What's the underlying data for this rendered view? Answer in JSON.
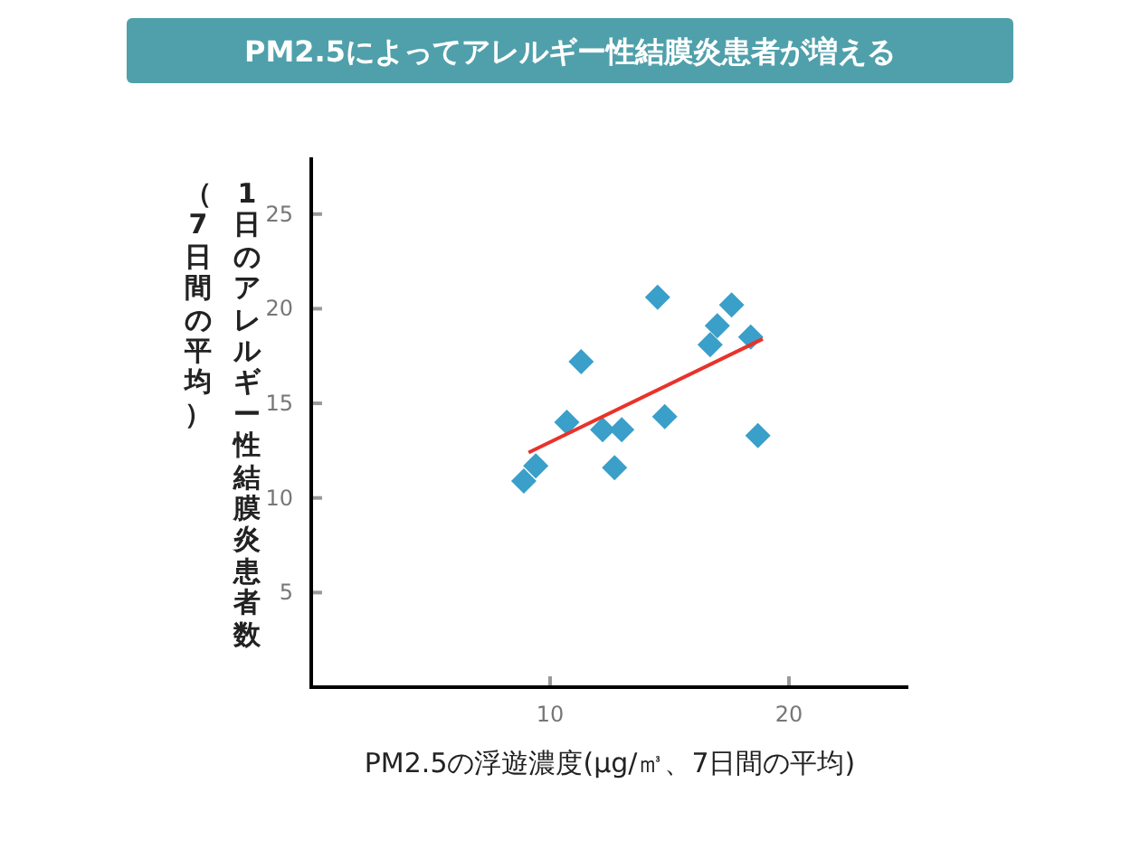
{
  "chart_data": {
    "type": "scatter",
    "title": "PM2.5によってアレルギー性結膜炎患者が増える",
    "xlabel": "PM2.5の浮遊濃度(μg/㎥、7日間の平均)",
    "ylabel": "1日のアレルギー性結膜炎患者数（7日間の平均）",
    "xlim": [
      0,
      25
    ],
    "xticks": [
      10,
      20
    ],
    "ylim": [
      0,
      28
    ],
    "yticks": [
      5,
      10,
      15,
      20,
      25
    ],
    "grid": false,
    "marker": "diamond",
    "series": [
      {
        "type": "scatter",
        "color": "#3a9fc9",
        "x": [
          8.9,
          9.4,
          10.7,
          11.3,
          12.2,
          12.7,
          13.0,
          14.5,
          14.8,
          16.7,
          17.0,
          17.6,
          18.4,
          18.7
        ],
        "values": [
          10.9,
          11.7,
          14.0,
          17.2,
          13.6,
          11.6,
          13.6,
          20.6,
          14.3,
          18.1,
          19.1,
          20.2,
          18.5,
          13.3
        ]
      },
      {
        "type": "line",
        "color": "#e8332a",
        "marker": "none",
        "x": [
          9.1,
          18.9
        ],
        "values": [
          12.4,
          18.4
        ]
      }
    ]
  }
}
